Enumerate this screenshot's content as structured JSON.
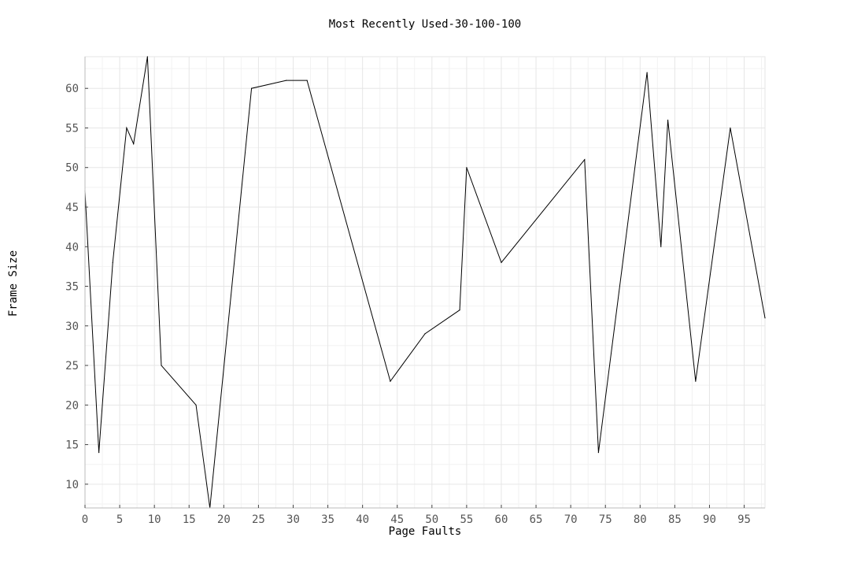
{
  "chart_data": {
    "type": "line",
    "title": "Most Recently Used-30-100-100",
    "xlabel": "Page Faults",
    "ylabel": "Frame Size",
    "xlim": [
      0,
      98
    ],
    "ylim": [
      7,
      64
    ],
    "x_ticks": [
      0,
      5,
      10,
      15,
      20,
      25,
      30,
      35,
      40,
      45,
      50,
      55,
      60,
      65,
      70,
      75,
      80,
      85,
      90,
      95
    ],
    "y_ticks": [
      10,
      15,
      20,
      25,
      30,
      35,
      40,
      45,
      50,
      55,
      60
    ],
    "grid": true,
    "legend": "none",
    "line_color": "#000000",
    "grid_color": "#e6e6e6",
    "series": [
      {
        "x": [
          0,
          2,
          4,
          6,
          7,
          9,
          11,
          16,
          18,
          24,
          29,
          32,
          44,
          49,
          54,
          55,
          60,
          72,
          74,
          81,
          83,
          84,
          88,
          93,
          98
        ],
        "values": [
          47,
          14,
          38,
          55,
          53,
          64,
          25,
          20,
          7,
          60,
          61,
          61,
          23,
          29,
          32,
          50,
          38,
          51,
          14,
          62,
          40,
          56,
          23,
          55,
          31
        ]
      }
    ]
  }
}
